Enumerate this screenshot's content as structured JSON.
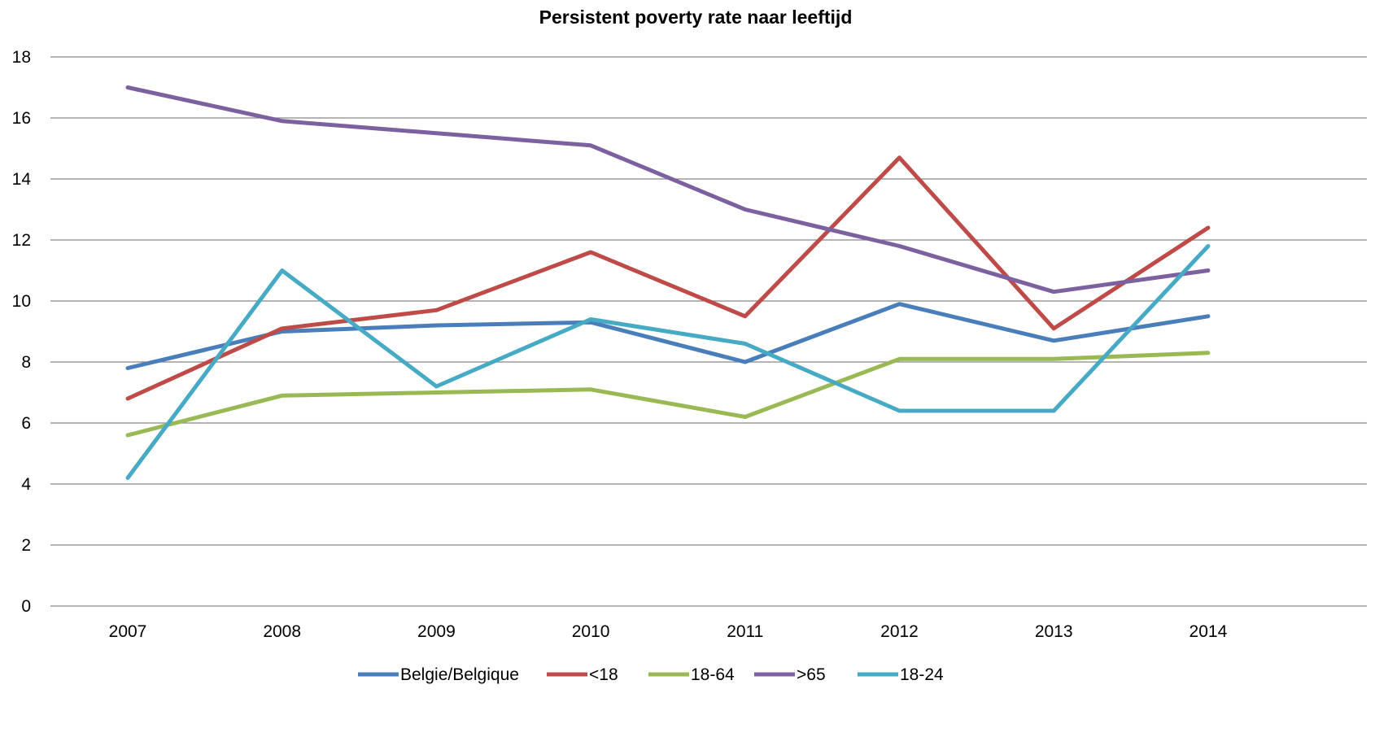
{
  "chart_data": {
    "type": "line",
    "title": "Persistent poverty rate naar leeftijd",
    "xlabel": "",
    "ylabel": "",
    "categories": [
      "2007",
      "2008",
      "2009",
      "2010",
      "2011",
      "2012",
      "2013",
      "2014"
    ],
    "ylim": [
      0,
      18
    ],
    "yticks": [
      0,
      2,
      4,
      6,
      8,
      10,
      12,
      14,
      16,
      18
    ],
    "grid": true,
    "legend_position": "bottom",
    "series": [
      {
        "name": "Belgie/Belgique",
        "color": "#4a7ebb",
        "values": [
          7.8,
          9.0,
          9.2,
          9.3,
          8.0,
          9.9,
          8.7,
          9.5
        ]
      },
      {
        "name": "<18",
        "color": "#be4b48",
        "values": [
          6.8,
          9.1,
          9.7,
          11.6,
          9.5,
          14.7,
          9.1,
          12.4
        ]
      },
      {
        "name": "18-64",
        "color": "#98b954",
        "values": [
          5.6,
          6.9,
          7.0,
          7.1,
          6.2,
          8.1,
          8.1,
          8.3
        ]
      },
      {
        "name": ">65",
        "color": "#7d60a0",
        "values": [
          17.0,
          15.9,
          15.5,
          15.1,
          13.0,
          11.8,
          10.3,
          11.0
        ]
      },
      {
        "name": "18-24",
        "color": "#46aac5",
        "values": [
          4.2,
          11.0,
          7.2,
          9.4,
          8.6,
          6.4,
          6.4,
          11.8
        ]
      }
    ]
  }
}
